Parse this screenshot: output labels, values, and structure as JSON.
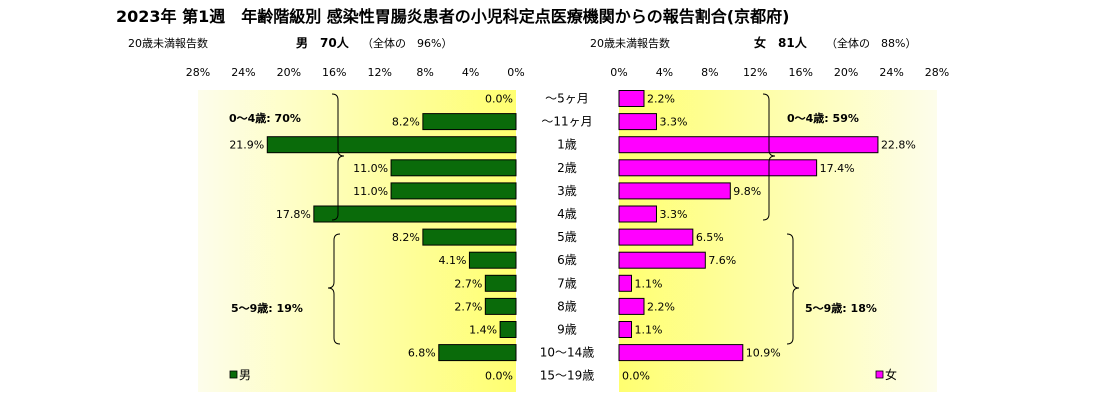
{
  "title": "2023年 第1週　年齢階級別 感染性胃腸炎患者の小児科定点医療機関からの報告割合(京都府)",
  "left_header": {
    "label": "20歳未満報告数",
    "summary": "男　70人",
    "note": "（全体の　96%）"
  },
  "right_header": {
    "label": "20歳未満報告数",
    "summary": "女　81人",
    "note": "（全体の　88%）"
  },
  "annotations": {
    "male_0_4": "0～4歳: 70%",
    "male_5_9": "5～9歳: 19%",
    "female_0_4": "0～4歳: 59%",
    "female_5_9": "5～9歳: 18%"
  },
  "colors": {
    "male": "#0a6b0a",
    "female": "#ff00ff",
    "bar_border": "#000000",
    "bg_edge": "#fdfde8",
    "bg_center": "#ffff66"
  },
  "chart_data": {
    "type": "bar",
    "orientation": "horizontal",
    "layout": "population-pyramid",
    "categories": [
      "～5ヶ月",
      "～11ヶ月",
      "1歳",
      "2歳",
      "3歳",
      "4歳",
      "5歳",
      "6歳",
      "7歳",
      "8歳",
      "9歳",
      "10～14歳",
      "15～19歳"
    ],
    "series": [
      {
        "name": "男",
        "values": [
          0.0,
          8.2,
          21.9,
          11.0,
          11.0,
          17.8,
          8.2,
          4.1,
          2.7,
          2.7,
          1.4,
          6.8,
          0.0
        ]
      },
      {
        "name": "女",
        "values": [
          2.2,
          3.3,
          22.8,
          17.4,
          9.8,
          3.3,
          6.5,
          7.6,
          1.1,
          2.2,
          1.1,
          10.9,
          0.0
        ]
      }
    ],
    "value_labels": {
      "male": [
        "0.0%",
        "8.2%",
        "21.9%",
        "11.0%",
        "11.0%",
        "17.8%",
        "8.2%",
        "4.1%",
        "2.7%",
        "2.7%",
        "1.4%",
        "6.8%",
        "0.0%"
      ],
      "female": [
        "2.2%",
        "3.3%",
        "22.8%",
        "17.4%",
        "9.8%",
        "3.3%",
        "6.5%",
        "7.6%",
        "1.1%",
        "2.2%",
        "1.1%",
        "10.9%",
        "0.0%"
      ]
    },
    "xlim": [
      0,
      28
    ],
    "xticks": [
      0,
      4,
      8,
      12,
      16,
      20,
      24,
      28
    ],
    "xtick_labels": [
      "0%",
      "4%",
      "8%",
      "12%",
      "16%",
      "20%",
      "24%",
      "28%"
    ],
    "grid": false,
    "legend": {
      "male": "男",
      "female": "女"
    },
    "legend_position": "bottom-inside"
  }
}
